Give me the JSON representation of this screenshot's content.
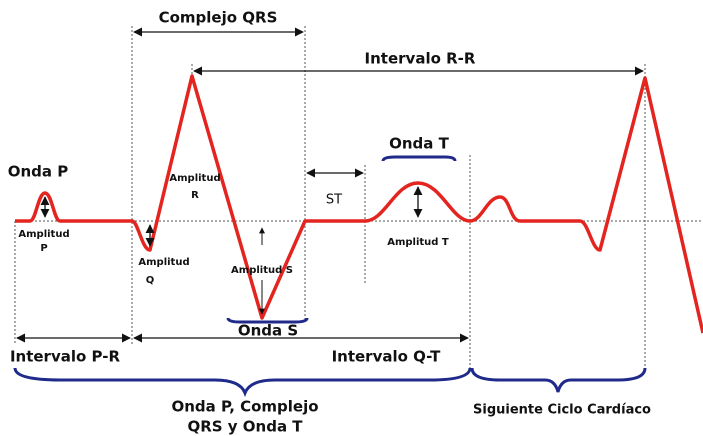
{
  "labels": {
    "complejo_qrs": "Complejo QRS",
    "intervalo_rr": "Intervalo R-R",
    "onda_p": "Onda P",
    "amplitud_p": [
      "Amplitud",
      "P"
    ],
    "amplitud_r": [
      "Amplitud",
      "R"
    ],
    "amplitud_q": [
      "Amplitud",
      "Q"
    ],
    "amplitud_s": "Amplitud S",
    "st": "ST",
    "onda_t": "Onda T",
    "amplitud_t": "Amplitud T",
    "onda_s": "Onda S",
    "intervalo_pr": "Intervalo P-R",
    "intervalo_qt": "Intervalo Q-T",
    "ciclo": [
      "Onda P, Complejo",
      "QRS y Onda T"
    ],
    "siguiente": "Siguiente Ciclo Cardíaco"
  }
}
